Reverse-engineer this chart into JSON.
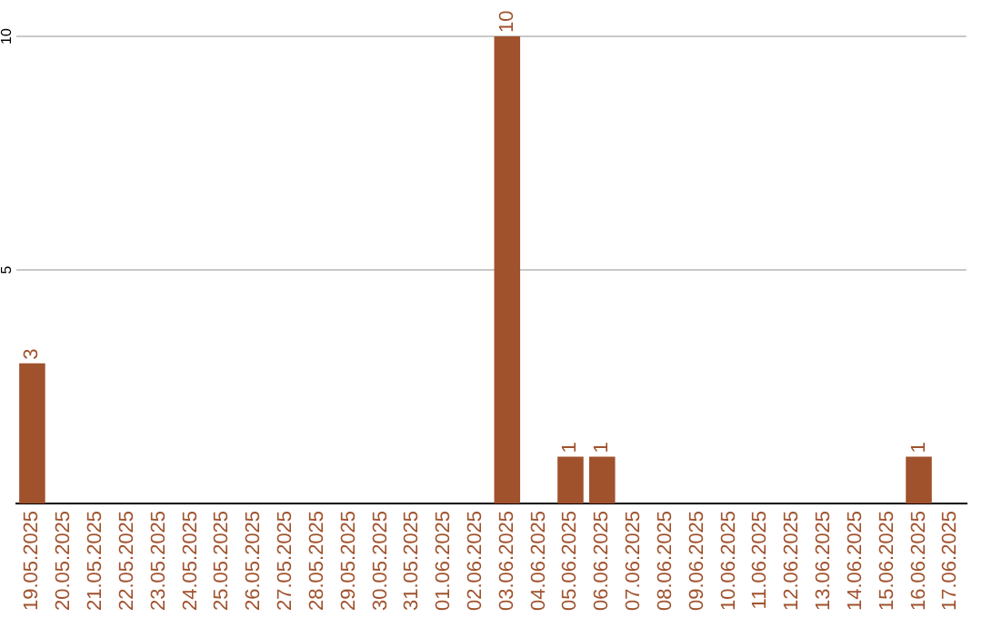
{
  "chart_data": {
    "type": "bar",
    "categories": [
      "19.05.2025",
      "20.05.2025",
      "21.05.2025",
      "22.05.2025",
      "23.05.2025",
      "24.05.2025",
      "25.05.2025",
      "26.05.2025",
      "27.05.2025",
      "28.05.2025",
      "29.05.2025",
      "30.05.2025",
      "31.05.2025",
      "01.06.2025",
      "02.06.2025",
      "03.06.2025",
      "04.06.2025",
      "05.06.2025",
      "06.06.2025",
      "07.06.2025",
      "08.06.2025",
      "09.06.2025",
      "10.06.2025",
      "11.06.2025",
      "12.06.2025",
      "13.06.2025",
      "14.06.2025",
      "15.06.2025",
      "16.06.2025",
      "17.06.2025"
    ],
    "values": [
      3,
      0,
      0,
      0,
      0,
      0,
      0,
      0,
      0,
      0,
      0,
      0,
      0,
      0,
      0,
      10,
      0,
      1,
      1,
      0,
      0,
      0,
      0,
      0,
      0,
      0,
      0,
      0,
      1,
      0
    ],
    "value_labels": [
      "3",
      null,
      null,
      null,
      null,
      null,
      null,
      null,
      null,
      null,
      null,
      null,
      null,
      null,
      null,
      "10",
      null,
      "1",
      "1",
      null,
      null,
      null,
      null,
      null,
      null,
      null,
      null,
      null,
      "1",
      null
    ],
    "color": "#a0522d",
    "ylim": [
      0,
      10
    ],
    "yticks": [
      5,
      10
    ],
    "grid": "y",
    "legend": false
  }
}
